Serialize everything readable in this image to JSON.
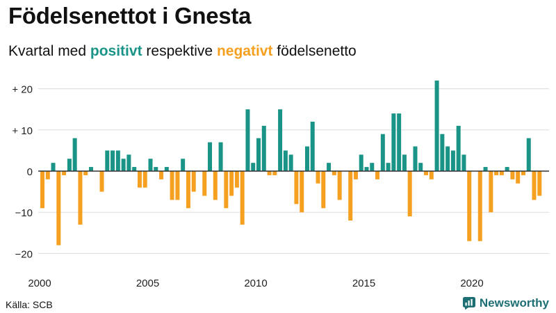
{
  "title": "Födelsenettot i Gnesta",
  "subtitle": {
    "prefix": "Kvartal med ",
    "positive_word": "positivt",
    "middle": " respektive ",
    "negative_word": "negativt",
    "suffix": " födelsenetto"
  },
  "source": "Källa: SCB",
  "brand": {
    "name": "Newsworthy",
    "icon": "newsworthy-logo-icon"
  },
  "colors": {
    "positive": "#1b9488",
    "negative": "#f5a020",
    "grid": "#dcdcdc",
    "axis": "#333333"
  },
  "chart_data": {
    "type": "bar",
    "x_start": 2000,
    "periods": "quarters",
    "ylim": [
      -22,
      24
    ],
    "y_ticks": [
      20,
      10,
      0,
      -10,
      -20
    ],
    "y_tick_labels": [
      "+ 20",
      "+ 10",
      "0",
      "−10",
      "−20"
    ],
    "x_ticks": [
      "2000",
      "2005",
      "2010",
      "2015",
      "2020"
    ],
    "values": [
      -9,
      -2,
      2,
      -18,
      -1,
      3,
      8,
      -13,
      -1,
      1,
      0,
      -5,
      5,
      5,
      5,
      3,
      4,
      1,
      -4,
      -4,
      3,
      1,
      -2,
      1,
      -7,
      -7,
      3,
      -9,
      -5,
      0,
      -6,
      7,
      -7,
      7,
      -9,
      -6,
      -4,
      -13,
      15,
      2,
      8,
      11,
      -1,
      -1,
      15,
      5,
      4,
      -8,
      -10,
      6,
      12,
      -3,
      -9,
      2,
      -1,
      -7,
      0,
      -12,
      -2,
      4,
      1,
      2,
      -2,
      9,
      2,
      14,
      14,
      4,
      -11,
      6,
      2,
      -1,
      -2,
      22,
      9,
      6,
      5,
      11,
      4,
      -17,
      0,
      -17,
      1,
      -10,
      -1,
      -1,
      1,
      -2,
      -3,
      -1,
      8,
      -7,
      -6
    ]
  }
}
